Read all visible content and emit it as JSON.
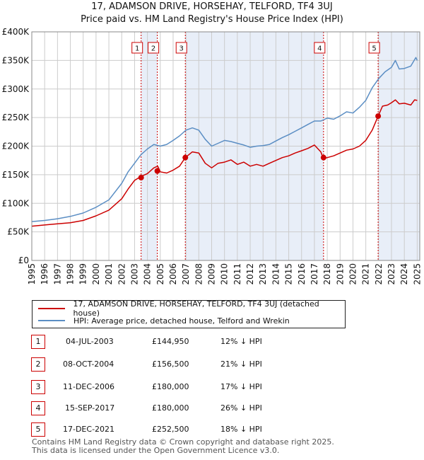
{
  "title_line1": "17, ADAMSON DRIVE, HORSEHAY, TELFORD, TF4 3UJ",
  "title_line2": "Price paid vs. HM Land Registry's House Price Index (HPI)",
  "colors": {
    "property": "#cc0000",
    "hpi": "#5b8ec4",
    "shade": "#e8eef8",
    "vline": "#cc0000",
    "grid": "#cccccc"
  },
  "chart_data": {
    "type": "line",
    "xlim": [
      1995,
      2025.2
    ],
    "ylim": [
      0,
      400000
    ],
    "y_ticks": [
      0,
      50000,
      100000,
      150000,
      200000,
      250000,
      300000,
      350000,
      400000
    ],
    "y_tick_labels": [
      "£0",
      "£50K",
      "£100K",
      "£150K",
      "£200K",
      "£250K",
      "£300K",
      "£350K",
      "£400K"
    ],
    "x_ticks": [
      1995,
      1996,
      1997,
      1998,
      1999,
      2000,
      2001,
      2002,
      2003,
      2004,
      2005,
      2006,
      2007,
      2008,
      2009,
      2010,
      2011,
      2012,
      2013,
      2014,
      2015,
      2016,
      2017,
      2018,
      2019,
      2020,
      2021,
      2022,
      2023,
      2024,
      2025
    ],
    "x_tick_labels": [
      "1995",
      "1996",
      "1997",
      "1998",
      "1999",
      "2000",
      "2001",
      "2002",
      "2003",
      "2004",
      "2005",
      "2006",
      "2007",
      "2008",
      "2009",
      "2010",
      "2011",
      "2012",
      "2013",
      "2014",
      "2015",
      "2016",
      "2017",
      "2018",
      "2019",
      "2020",
      "2021",
      "2022",
      "2023",
      "2024",
      "2025"
    ],
    "series": [
      {
        "name": "17, ADAMSON DRIVE, HORSEHAY, TELFORD, TF4 3UJ (detached house)",
        "color": "#cc0000",
        "x": [
          1995,
          1996,
          1997,
          1998,
          1999,
          2000,
          2001,
          2002,
          2002.5,
          2003,
          2003.5,
          2004,
          2004.5,
          2004.8,
          2005,
          2005.5,
          2006,
          2006.5,
          2006.95,
          2007.5,
          2008,
          2008.5,
          2009,
          2009.5,
          2010,
          2010.5,
          2011,
          2011.5,
          2012,
          2012.5,
          2013,
          2013.5,
          2014,
          2014.5,
          2015,
          2015.5,
          2016,
          2016.5,
          2017,
          2017.5,
          2017.7,
          2018,
          2018.5,
          2019,
          2019.5,
          2020,
          2020.5,
          2021,
          2021.5,
          2021.96,
          2022.3,
          2022.7,
          2023,
          2023.3,
          2023.6,
          2024,
          2024.5,
          2024.8,
          2025
        ],
        "values": [
          60000,
          62000,
          64000,
          66000,
          70000,
          78000,
          88000,
          108000,
          125000,
          140000,
          147000,
          152000,
          162000,
          165000,
          155000,
          153000,
          158000,
          165000,
          180000,
          190000,
          188000,
          170000,
          162000,
          170000,
          172000,
          176000,
          168000,
          172000,
          165000,
          168000,
          165000,
          170000,
          175000,
          180000,
          183000,
          188000,
          192000,
          196000,
          202000,
          190000,
          178000,
          180000,
          183000,
          188000,
          193000,
          195000,
          200000,
          210000,
          228000,
          252500,
          270000,
          272000,
          276000,
          281000,
          274000,
          275000,
          272000,
          281000,
          280000
        ]
      },
      {
        "name": "HPI: Average price, detached house, Telford and Wrekin",
        "color": "#5b8ec4",
        "x": [
          1995,
          1996,
          1997,
          1998,
          1999,
          2000,
          2001,
          2002,
          2002.5,
          2003,
          2003.5,
          2004,
          2004.5,
          2005,
          2005.5,
          2006,
          2006.5,
          2007,
          2007.5,
          2008,
          2008.5,
          2009,
          2009.5,
          2010,
          2010.5,
          2011,
          2011.5,
          2012,
          2012.5,
          2013,
          2013.5,
          2014,
          2014.5,
          2015,
          2015.5,
          2016,
          2016.5,
          2017,
          2017.5,
          2018,
          2018.5,
          2019,
          2019.5,
          2020,
          2020.5,
          2021,
          2021.5,
          2022,
          2022.5,
          2023,
          2023.3,
          2023.6,
          2024,
          2024.5,
          2024.9,
          2025
        ],
        "values": [
          68000,
          70000,
          73000,
          77000,
          83000,
          93000,
          106000,
          135000,
          155000,
          170000,
          185000,
          195000,
          203000,
          200000,
          203000,
          210000,
          218000,
          228000,
          232000,
          228000,
          212000,
          200000,
          205000,
          210000,
          208000,
          205000,
          202000,
          198000,
          200000,
          201000,
          203000,
          209000,
          215000,
          220000,
          226000,
          232000,
          238000,
          244000,
          244000,
          249000,
          247000,
          253000,
          260000,
          258000,
          268000,
          280000,
          302000,
          318000,
          330000,
          338000,
          350000,
          335000,
          336000,
          340000,
          355000,
          350000
        ]
      }
    ],
    "sale_markers": [
      {
        "label": "1",
        "x": 2003.51,
        "value": 144950
      },
      {
        "label": "2",
        "x": 2004.77,
        "value": 156500
      },
      {
        "label": "3",
        "x": 2006.95,
        "value": 180000
      },
      {
        "label": "4",
        "x": 2017.71,
        "value": 180000
      },
      {
        "label": "5",
        "x": 2021.96,
        "value": 252500
      }
    ],
    "shaded_spans": [
      [
        2003.51,
        2004.77
      ],
      [
        2006.95,
        2017.71
      ],
      [
        2021.96,
        2025.2
      ]
    ]
  },
  "legend": {
    "property_label": "17, ADAMSON DRIVE, HORSEHAY, TELFORD, TF4 3UJ (detached house)",
    "hpi_label": "HPI: Average price, detached house, Telford and Wrekin"
  },
  "transactions": [
    {
      "num": "1",
      "date": "04-JUL-2003",
      "price": "£144,950",
      "delta": "12% ↓ HPI"
    },
    {
      "num": "2",
      "date": "08-OCT-2004",
      "price": "£156,500",
      "delta": "21% ↓ HPI"
    },
    {
      "num": "3",
      "date": "11-DEC-2006",
      "price": "£180,000",
      "delta": "17% ↓ HPI"
    },
    {
      "num": "4",
      "date": "15-SEP-2017",
      "price": "£180,000",
      "delta": "26% ↓ HPI"
    },
    {
      "num": "5",
      "date": "17-DEC-2021",
      "price": "£252,500",
      "delta": "18% ↓ HPI"
    }
  ],
  "footer": {
    "line1": "Contains HM Land Registry data © Crown copyright and database right 2025.",
    "line2": "This data is licensed under the Open Government Licence v3.0."
  }
}
